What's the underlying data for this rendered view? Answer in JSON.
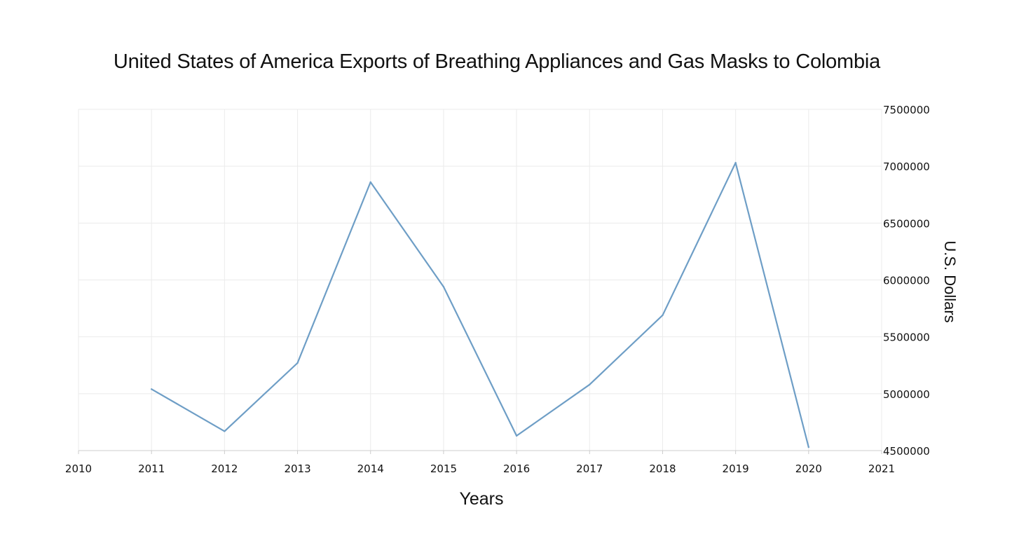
{
  "chart_data": {
    "type": "line",
    "title": "United States of America Exports of Breathing Appliances and Gas Masks to Colombia",
    "xlabel": "Years",
    "ylabel": "U.S. Dollars",
    "xlim": [
      2010,
      2021
    ],
    "ylim": [
      4500000,
      7500000
    ],
    "x_ticks": [
      "2010",
      "2011",
      "2012",
      "2013",
      "2014",
      "2015",
      "2016",
      "2017",
      "2018",
      "2019",
      "2020",
      "2021"
    ],
    "y_ticks": [
      "4500000",
      "5000000",
      "5500000",
      "6000000",
      "6500000",
      "7000000",
      "7500000"
    ],
    "y_axis_position": "right",
    "grid": true,
    "series": [
      {
        "color": "#6e9ec6",
        "x": [
          2011,
          2012,
          2013,
          2014,
          2015,
          2016,
          2017,
          2018,
          2019,
          2020
        ],
        "values": [
          5040000,
          4670000,
          5270000,
          6860000,
          5940000,
          4630000,
          5080000,
          5690000,
          7030000,
          4530000
        ]
      }
    ]
  }
}
